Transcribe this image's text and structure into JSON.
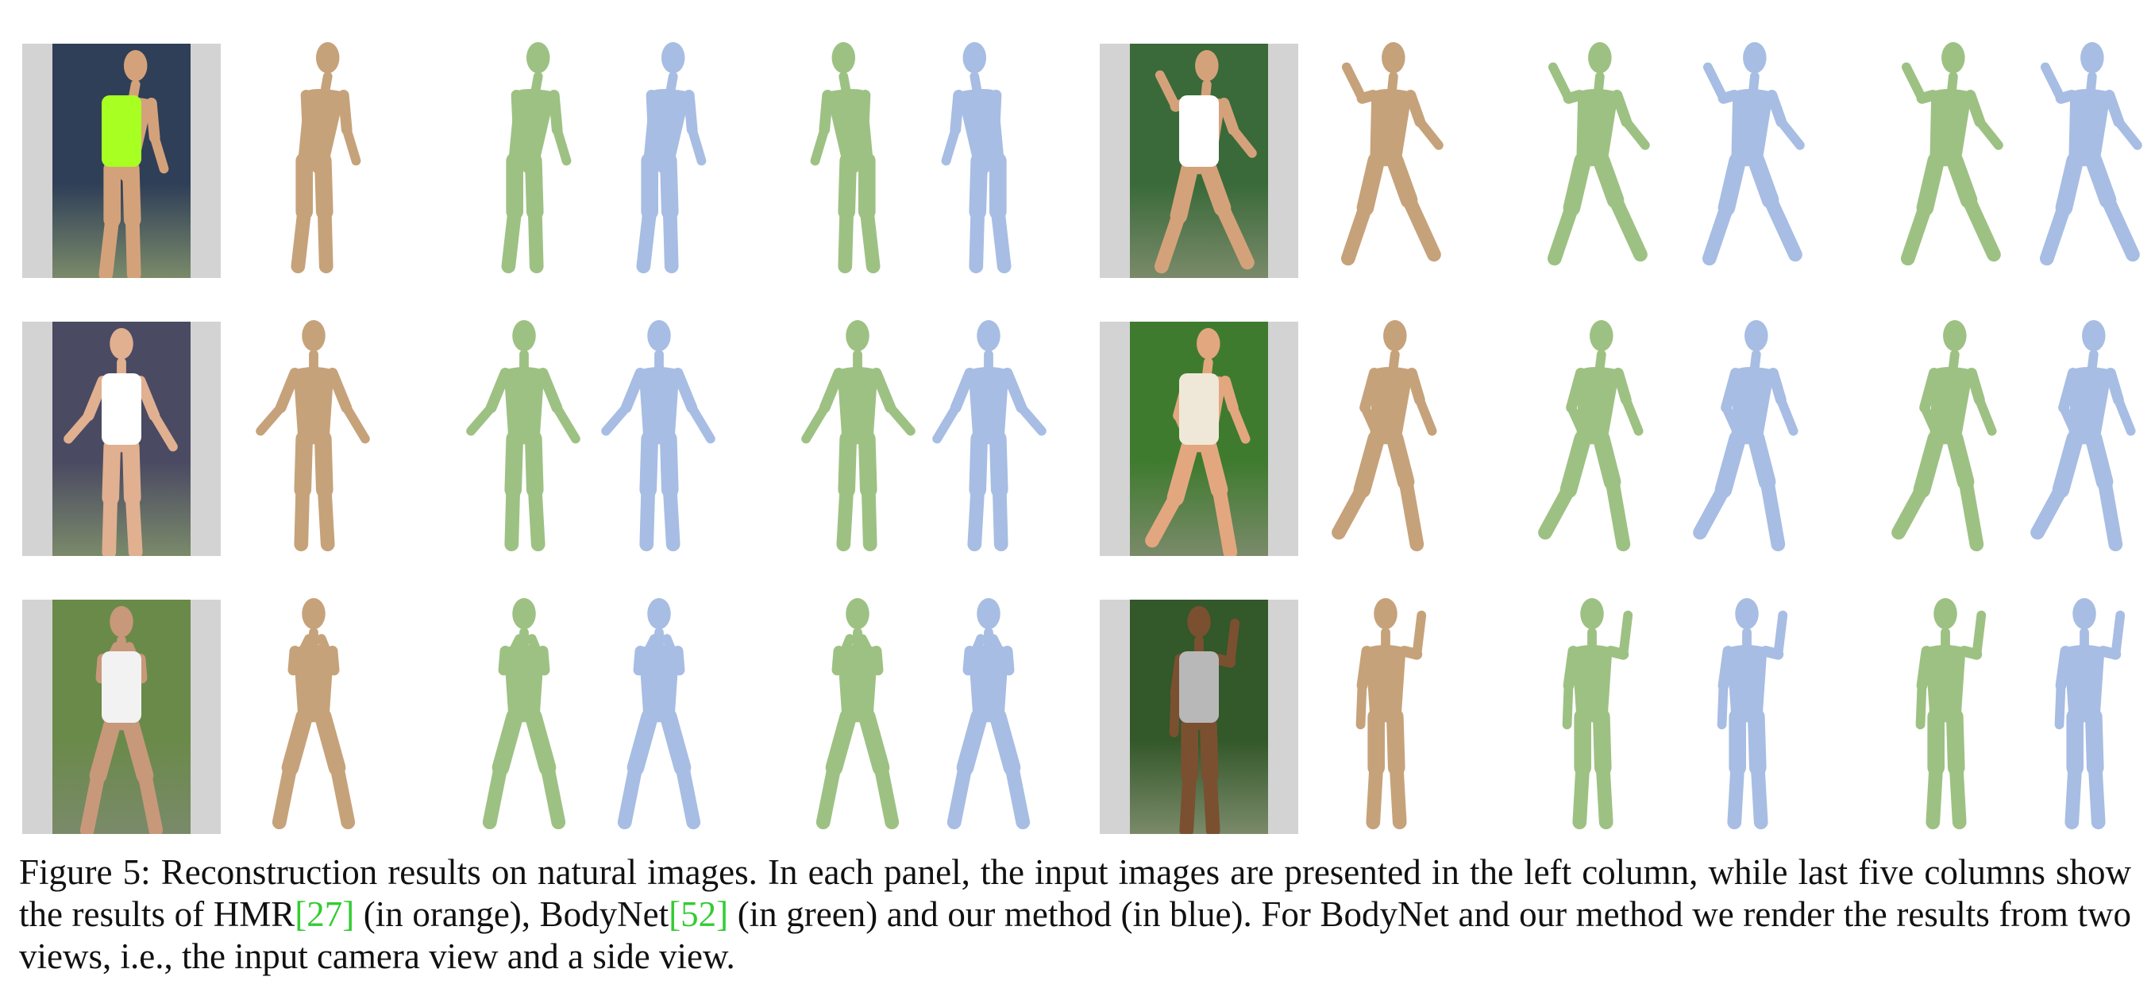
{
  "colors": {
    "hmr": "#c6a27a",
    "bodynet": "#9dc183",
    "ours": "#a7bde3",
    "photo_bg": "#d3d3d3",
    "citation": "#33cc33"
  },
  "panels": [
    {
      "id": "r1-left",
      "photo": "tennis-player-neon-shirt",
      "pose": "bend"
    },
    {
      "id": "r1-right",
      "photo": "tennis-player-white-outfit",
      "pose": "lunge"
    },
    {
      "id": "r2-left",
      "photo": "tennis-player-white-dress",
      "pose": "stand"
    },
    {
      "id": "r2-right",
      "photo": "man-running-on-grass",
      "pose": "run"
    },
    {
      "id": "r3-left",
      "photo": "baseball-batter-ready",
      "pose": "bat"
    },
    {
      "id": "r3-right",
      "photo": "baseball-player-boston",
      "pose": "wave"
    }
  ],
  "caption": {
    "label": "Figure 5:",
    "text_1": " Reconstruction results on natural images. In each panel, the input images are presented in the left column, while last five columns show the results of HMR",
    "ref_1": "[27]",
    "text_2": " (in orange), BodyNet",
    "ref_2": "[52]",
    "text_3": " (in green) and our method (in blue). For BodyNet and our method we render the results from two views, i.e., the input camera view and a side view."
  }
}
